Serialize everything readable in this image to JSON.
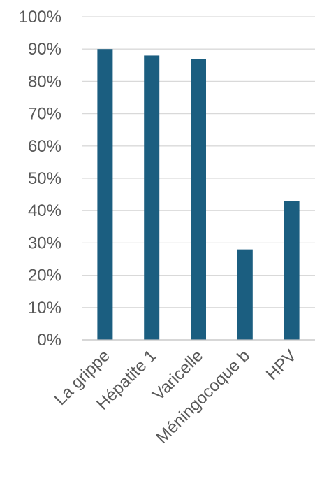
{
  "chart_data": {
    "type": "bar",
    "categories": [
      "La grippe",
      "Hépatite 1",
      "Varicelle",
      "Méningocoque b",
      "HPV"
    ],
    "values": [
      90,
      88,
      87,
      28,
      43
    ],
    "ylim": [
      0,
      100
    ],
    "yticks": [
      "0%",
      "10%",
      "20%",
      "30%",
      "40%",
      "50%",
      "60%",
      "70%",
      "80%",
      "90%",
      "100%"
    ],
    "grid": true,
    "legend": "none",
    "bar_color": "#1b5e80"
  }
}
